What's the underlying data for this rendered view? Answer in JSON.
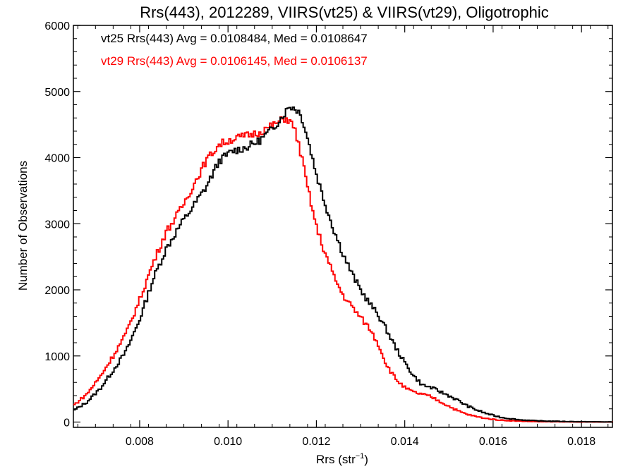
{
  "chart_data": {
    "type": "line",
    "title": "Rrs(443), 2012289, VIIRS(vt25) & VIIRS(vt29), Oligotrophic",
    "xlabel_main": "Rrs (str",
    "xlabel_sup": "−1",
    "xlabel_close": ")",
    "ylabel": "Number of Observations",
    "xlim": [
      0.0065,
      0.0187
    ],
    "ylim": [
      -80,
      6000
    ],
    "x_ticks": [
      0.008,
      0.01,
      0.012,
      0.014,
      0.016,
      0.018
    ],
    "x_tick_labels": [
      "0.008",
      "0.010",
      "0.012",
      "0.014",
      "0.016",
      "0.018"
    ],
    "y_ticks": [
      0,
      1000,
      2000,
      3000,
      4000,
      5000,
      6000
    ],
    "y_tick_labels": [
      "0",
      "1000",
      "2000",
      "3000",
      "4000",
      "5000",
      "6000"
    ],
    "grid": false,
    "annotations": [
      {
        "text": "vt25 Rrs(443) Avg = 0.0108484, Med = 0.0108647",
        "color": "#000000"
      },
      {
        "text": "vt29 Rrs(443) Avg = 0.0106145, Med = 0.0106137",
        "color": "#ff0000"
      }
    ],
    "series": [
      {
        "color": "#000000",
        "step": true,
        "x": [
          0.0065,
          0.0068,
          0.0071,
          0.0074,
          0.0077,
          0.008,
          0.0083,
          0.0086,
          0.0089,
          0.0092,
          0.0095,
          0.0098,
          0.0101,
          0.0104,
          0.0107,
          0.011,
          0.0112,
          0.0114,
          0.0115,
          0.0116,
          0.0117,
          0.0118,
          0.012,
          0.0122,
          0.0124,
          0.0126,
          0.0128,
          0.013,
          0.0132,
          0.0134,
          0.0136,
          0.0138,
          0.014,
          0.0142,
          0.0144,
          0.0146,
          0.0148,
          0.015,
          0.0152,
          0.0154,
          0.0156,
          0.0158,
          0.016,
          0.0162,
          0.0164,
          0.0166,
          0.0168,
          0.017,
          0.0175,
          0.018,
          0.0187
        ],
        "y": [
          170,
          300,
          500,
          780,
          1080,
          1550,
          2150,
          2620,
          2960,
          3250,
          3550,
          3950,
          4100,
          4150,
          4250,
          4430,
          4600,
          4780,
          4750,
          4700,
          4550,
          4300,
          3750,
          3300,
          2900,
          2550,
          2250,
          2000,
          1800,
          1620,
          1380,
          1120,
          900,
          700,
          560,
          520,
          460,
          400,
          330,
          250,
          190,
          140,
          100,
          70,
          50,
          35,
          25,
          18,
          10,
          5,
          2
        ]
      },
      {
        "color": "#ff0000",
        "step": true,
        "x": [
          0.0065,
          0.0068,
          0.0071,
          0.0074,
          0.0077,
          0.008,
          0.0083,
          0.0086,
          0.0089,
          0.0092,
          0.0095,
          0.0098,
          0.0101,
          0.0104,
          0.0107,
          0.011,
          0.0112,
          0.0113,
          0.0114,
          0.0115,
          0.0116,
          0.0117,
          0.0118,
          0.012,
          0.0122,
          0.0124,
          0.0126,
          0.0128,
          0.013,
          0.0132,
          0.0134,
          0.0136,
          0.0138,
          0.014,
          0.0142,
          0.0144,
          0.0146,
          0.0148,
          0.015,
          0.0152,
          0.0154,
          0.0156,
          0.0158,
          0.016,
          0.0162,
          0.0164,
          0.0166,
          0.0168,
          0.017,
          0.0175,
          0.018,
          0.0187
        ],
        "y": [
          250,
          420,
          680,
          1000,
          1350,
          1850,
          2400,
          2880,
          3180,
          3560,
          3950,
          4200,
          4280,
          4330,
          4380,
          4480,
          4560,
          4600,
          4550,
          4450,
          4200,
          3900,
          3550,
          2950,
          2550,
          2200,
          1920,
          1750,
          1580,
          1420,
          1180,
          850,
          650,
          520,
          450,
          420,
          380,
          310,
          240,
          170,
          120,
          85,
          60,
          40,
          28,
          20,
          14,
          10,
          6,
          3,
          1,
          0
        ]
      }
    ]
  }
}
